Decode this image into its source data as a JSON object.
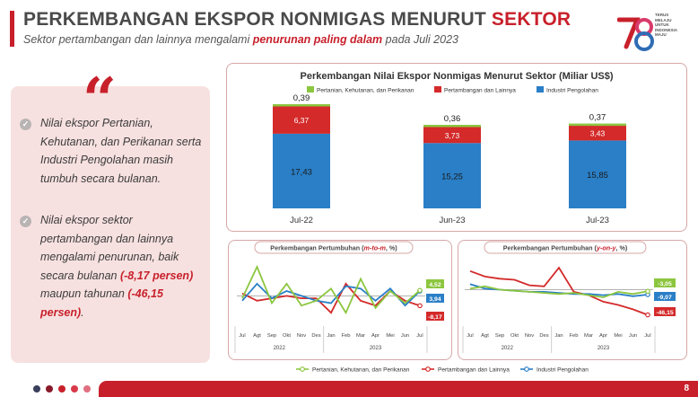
{
  "header": {
    "title_main": "PERKEMBANGAN EKSPOR NONMIGAS MENURUT ",
    "title_accent": "SEKTOR",
    "subtitle_pre": "Sektor pertambangan dan lainnya mengalami ",
    "subtitle_hl": "penurunan paling dalam",
    "subtitle_post": " pada Juli 2023"
  },
  "logo": {
    "text_lines": [
      "TERUS",
      "MELAJU",
      "UNTUK",
      "INDONESIA",
      "MAJU"
    ],
    "colors": [
      "#c8202b",
      "#d93a6a",
      "#2f6db5"
    ]
  },
  "left_panel": {
    "quote_mark": "“",
    "bullet1": "Nilai ekspor Pertanian, Kehutanan, dan Perikanan serta Industri Pengolahan masih tumbuh secara bulanan.",
    "bullet2_pre": "Nilai ekspor sektor pertambangan dan lainnya mengalami penurunan, baik secara bulanan ",
    "bullet2_hl1": "(-8,17 persen)",
    "bullet2_mid": " maupun tahunan ",
    "bullet2_hl2": "(-46,15 persen)",
    "bullet2_post": "."
  },
  "colors": {
    "pertanian": "#8cc63f",
    "pertambangan": "#d42a2a",
    "industri": "#2a7fc7",
    "accent": "#c8202b"
  },
  "chart_data": [
    {
      "type": "bar",
      "title": "Perkembangan Nilai Ekspor Nonmigas Menurut Sektor (Miliar US$)",
      "categories": [
        "Jul-22",
        "Jun-23",
        "Jul-23"
      ],
      "series": [
        {
          "name": "Industri Pengolahan",
          "values": [
            17.43,
            15.25,
            15.85
          ],
          "labels": [
            "17,43",
            "15,25",
            "15,85"
          ]
        },
        {
          "name": "Pertambangan dan Lainnya",
          "values": [
            6.37,
            3.73,
            3.43
          ],
          "labels": [
            "6,37",
            "3,73",
            "3,43"
          ]
        },
        {
          "name": "Pertanian, Kehutanan, dan Perikanan",
          "values": [
            0.39,
            0.36,
            0.37
          ],
          "labels": [
            "0,39",
            "0,36",
            "0,37"
          ]
        }
      ],
      "legend": [
        "Pertanian, Kehutanan, dan Perikanan",
        "Pertambangan dan Lainnya",
        "Industri Pengolahan"
      ],
      "legend_position": "top",
      "ylim": [
        0,
        26
      ]
    },
    {
      "type": "line",
      "title_pre": "Perkembangan Pertumbuhan (",
      "title_hl": "m-to-m",
      "title_post": ", %)",
      "x": [
        "Jul",
        "Agt",
        "Sep",
        "Okt",
        "Nov",
        "Des",
        "Jan",
        "Feb",
        "Mar",
        "Apr",
        "Mei",
        "Jun",
        "Jul"
      ],
      "year_labels": [
        "2022",
        "2023"
      ],
      "series": [
        {
          "name": "Pertanian, Kehutanan, dan Perikanan",
          "values": [
            -2,
            24,
            -6,
            10,
            -8,
            -4,
            6,
            -14,
            14,
            -10,
            4,
            -6,
            4.52
          ]
        },
        {
          "name": "Pertambangan dan Lainnya",
          "values": [
            2,
            -4,
            -2,
            0,
            -2,
            -2,
            -14,
            10,
            -4,
            -8,
            4,
            -4,
            -8.17
          ]
        },
        {
          "name": "Industri Pengolahan",
          "values": [
            -4,
            10,
            -2,
            4,
            0,
            -4,
            -6,
            8,
            6,
            -4,
            6,
            -8,
            3.94
          ]
        }
      ],
      "end_labels": [
        "4,52",
        "3,94",
        "-8,17"
      ],
      "ylim": [
        -22,
        30
      ]
    },
    {
      "type": "line",
      "title_pre": "Perkembangan Pertumbuhan (",
      "title_hl": "y-on-y",
      "title_post": ", %)",
      "x": [
        "Jul",
        "Agt",
        "Sep",
        "Okt",
        "Nov",
        "Des",
        "Jan",
        "Feb",
        "Mar",
        "Apr",
        "Mei",
        "Jun",
        "Jul"
      ],
      "year_labels": [
        "2022",
        "2023"
      ],
      "series": [
        {
          "name": "Pertanian, Kehutanan, dan Perikanan",
          "values": [
            2,
            6,
            0,
            -2,
            -4,
            -6,
            -8,
            -6,
            -10,
            -14,
            -4,
            -8,
            -3.05
          ]
        },
        {
          "name": "Pertambangan dan Lainnya",
          "values": [
            34,
            24,
            20,
            18,
            8,
            6,
            40,
            -4,
            -10,
            -22,
            -28,
            -36,
            -46.15
          ]
        },
        {
          "name": "Industri Pengolahan",
          "values": [
            10,
            2,
            0,
            -2,
            -4,
            -4,
            -6,
            -8,
            -8,
            -10,
            -8,
            -12,
            -9.07
          ]
        }
      ],
      "end_labels": [
        "-3,05",
        "-9,07",
        "-46,15"
      ],
      "ylim": [
        -60,
        55
      ]
    }
  ],
  "bottom_legend": [
    "Pertanian, Kehutanan, dan Perikanan",
    "Pertambangan dan Lainnya",
    "Industri Pengolahan"
  ],
  "footer": {
    "page": "8",
    "dots": [
      "#3a3f5c",
      "#8a1a2a",
      "#c8202b",
      "#d93a4a",
      "#e07080"
    ]
  }
}
